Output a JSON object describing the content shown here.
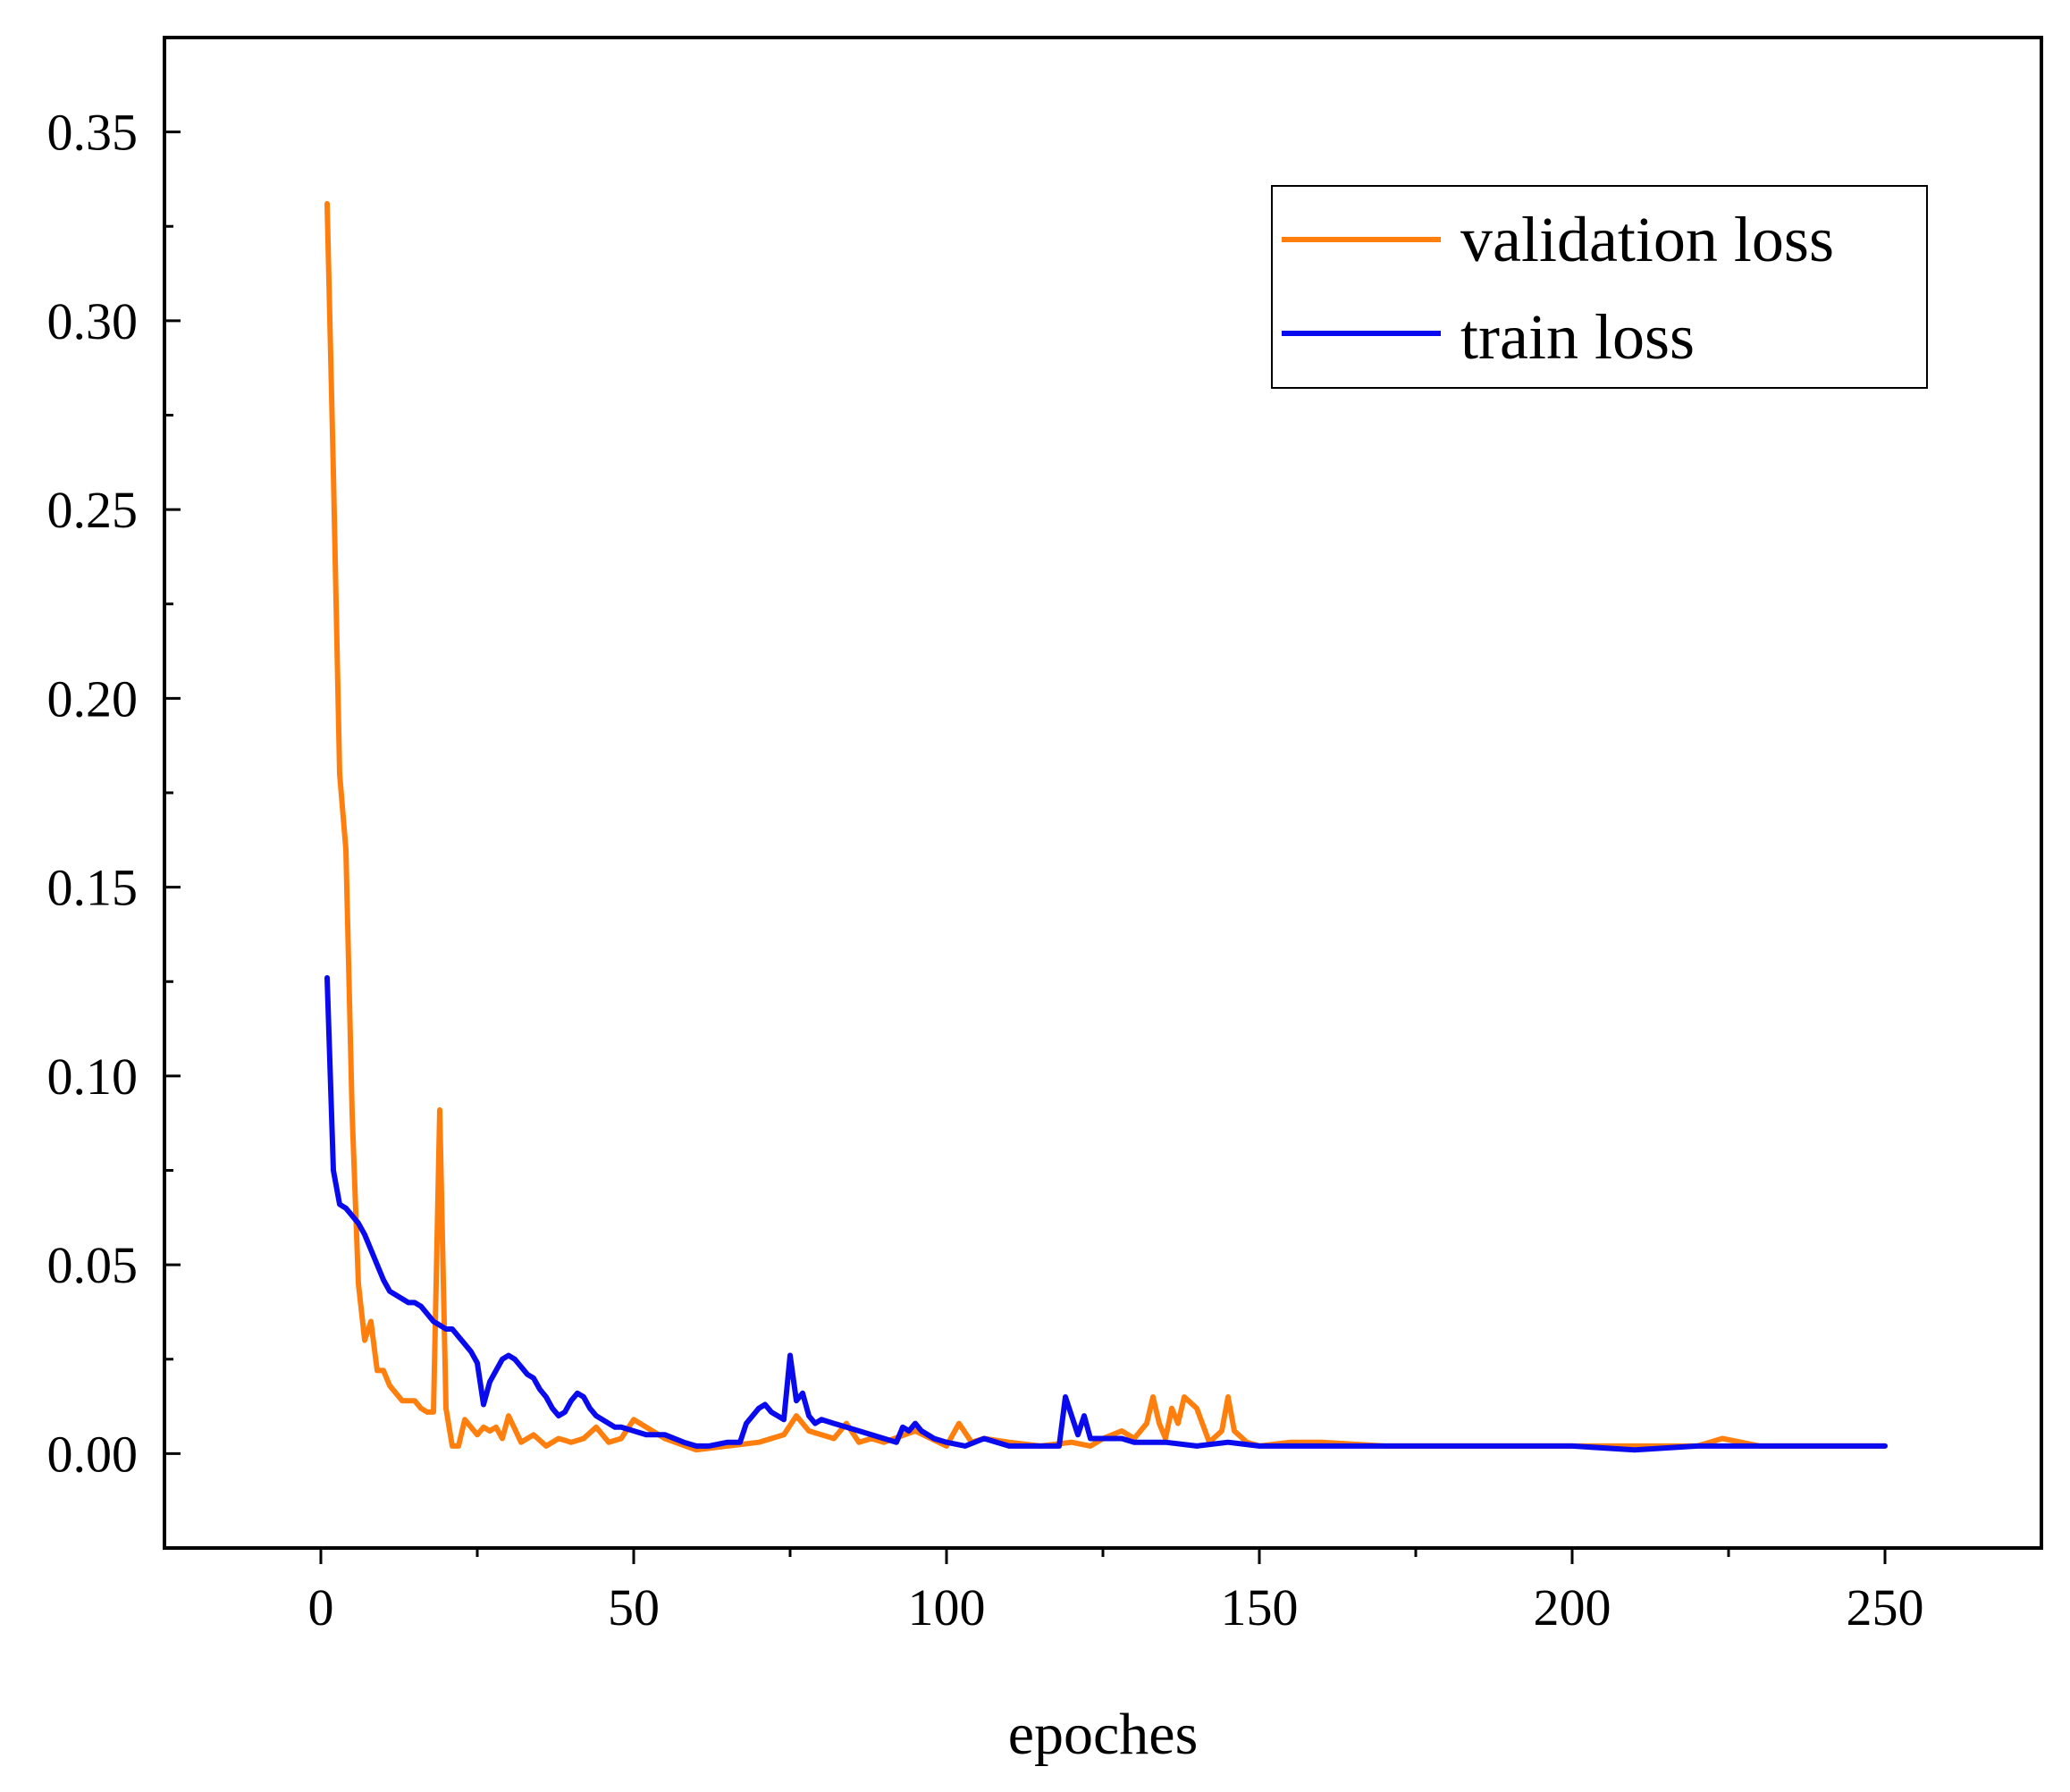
{
  "chart_data": {
    "type": "line",
    "title": "",
    "xlabel": "epoches",
    "ylabel": "",
    "xlim": [
      -25,
      275
    ],
    "ylim": [
      -0.025,
      0.375
    ],
    "xticks": [
      0,
      50,
      100,
      150,
      200,
      250
    ],
    "xtick_labels": [
      "0",
      "50",
      "100",
      "150",
      "200",
      "250"
    ],
    "yticks": [
      0.0,
      0.05,
      0.1,
      0.15,
      0.2,
      0.25,
      0.3,
      0.35
    ],
    "ytick_labels": [
      "0.00",
      "0.05",
      "0.10",
      "0.15",
      "0.20",
      "0.25",
      "0.30",
      "0.35"
    ],
    "grid": false,
    "legend_position": "top-right",
    "series": [
      {
        "name": "validation loss",
        "color": "#ff7f0e",
        "x": [
          1,
          2,
          3,
          4,
          5,
          6,
          7,
          8,
          9,
          10,
          11,
          12,
          13,
          14,
          15,
          16,
          17,
          18,
          19,
          20,
          21,
          22,
          23,
          24,
          25,
          26,
          27,
          28,
          29,
          30,
          32,
          34,
          36,
          38,
          40,
          42,
          44,
          46,
          48,
          50,
          55,
          60,
          65,
          70,
          72,
          74,
          76,
          78,
          80,
          82,
          84,
          86,
          88,
          90,
          95,
          100,
          102,
          104,
          106,
          110,
          115,
          120,
          123,
          125,
          128,
          130,
          132,
          133,
          134,
          135,
          136,
          137,
          138,
          140,
          142,
          144,
          145,
          146,
          148,
          150,
          155,
          160,
          170,
          180,
          190,
          200,
          210,
          220,
          224,
          230,
          240,
          250
        ],
        "values": [
          0.331,
          0.26,
          0.18,
          0.16,
          0.09,
          0.045,
          0.03,
          0.035,
          0.022,
          0.022,
          0.018,
          0.016,
          0.014,
          0.014,
          0.014,
          0.012,
          0.011,
          0.011,
          0.091,
          0.012,
          0.002,
          0.002,
          0.009,
          0.007,
          0.005,
          0.007,
          0.006,
          0.007,
          0.004,
          0.01,
          0.003,
          0.005,
          0.002,
          0.004,
          0.003,
          0.004,
          0.007,
          0.003,
          0.004,
          0.009,
          0.004,
          0.001,
          0.002,
          0.003,
          0.004,
          0.005,
          0.01,
          0.006,
          0.005,
          0.004,
          0.008,
          0.003,
          0.004,
          0.003,
          0.006,
          0.002,
          0.008,
          0.003,
          0.004,
          0.003,
          0.002,
          0.003,
          0.002,
          0.004,
          0.006,
          0.004,
          0.008,
          0.015,
          0.008,
          0.004,
          0.012,
          0.008,
          0.015,
          0.012,
          0.003,
          0.006,
          0.015,
          0.006,
          0.003,
          0.002,
          0.003,
          0.003,
          0.002,
          0.002,
          0.002,
          0.002,
          0.002,
          0.002,
          0.004,
          0.002,
          0.002,
          0.002
        ]
      },
      {
        "name": "train loss",
        "color": "#0a0aee",
        "x": [
          1,
          2,
          3,
          4,
          5,
          6,
          7,
          8,
          9,
          10,
          11,
          12,
          13,
          14,
          15,
          16,
          17,
          18,
          19,
          20,
          21,
          22,
          23,
          24,
          25,
          26,
          27,
          28,
          29,
          30,
          31,
          32,
          33,
          34,
          35,
          36,
          37,
          38,
          39,
          40,
          41,
          42,
          43,
          44,
          45,
          46,
          47,
          48,
          50,
          52,
          55,
          58,
          60,
          62,
          65,
          67,
          68,
          69,
          70,
          71,
          72,
          73,
          74,
          75,
          76,
          77,
          78,
          79,
          80,
          82,
          84,
          86,
          88,
          90,
          92,
          93,
          94,
          95,
          96,
          98,
          100,
          103,
          106,
          110,
          115,
          118,
          119,
          120,
          121,
          122,
          123,
          125,
          128,
          130,
          135,
          140,
          145,
          150,
          160,
          170,
          180,
          190,
          200,
          210,
          220,
          230,
          240,
          250
        ],
        "values": [
          0.126,
          0.075,
          0.066,
          0.065,
          0.063,
          0.061,
          0.058,
          0.054,
          0.05,
          0.046,
          0.043,
          0.042,
          0.041,
          0.04,
          0.04,
          0.039,
          0.037,
          0.035,
          0.034,
          0.033,
          0.033,
          0.031,
          0.029,
          0.027,
          0.024,
          0.013,
          0.019,
          0.022,
          0.025,
          0.026,
          0.025,
          0.023,
          0.021,
          0.02,
          0.017,
          0.015,
          0.012,
          0.01,
          0.011,
          0.014,
          0.016,
          0.015,
          0.012,
          0.01,
          0.009,
          0.008,
          0.007,
          0.007,
          0.006,
          0.005,
          0.005,
          0.003,
          0.002,
          0.002,
          0.003,
          0.003,
          0.008,
          0.01,
          0.012,
          0.013,
          0.011,
          0.01,
          0.009,
          0.026,
          0.014,
          0.016,
          0.01,
          0.008,
          0.009,
          0.008,
          0.007,
          0.006,
          0.005,
          0.004,
          0.003,
          0.007,
          0.006,
          0.008,
          0.006,
          0.004,
          0.003,
          0.002,
          0.004,
          0.002,
          0.002,
          0.002,
          0.015,
          0.01,
          0.005,
          0.01,
          0.004,
          0.004,
          0.004,
          0.003,
          0.003,
          0.002,
          0.003,
          0.002,
          0.002,
          0.002,
          0.002,
          0.002,
          0.002,
          0.001,
          0.002,
          0.002,
          0.002,
          0.002
        ]
      }
    ]
  }
}
